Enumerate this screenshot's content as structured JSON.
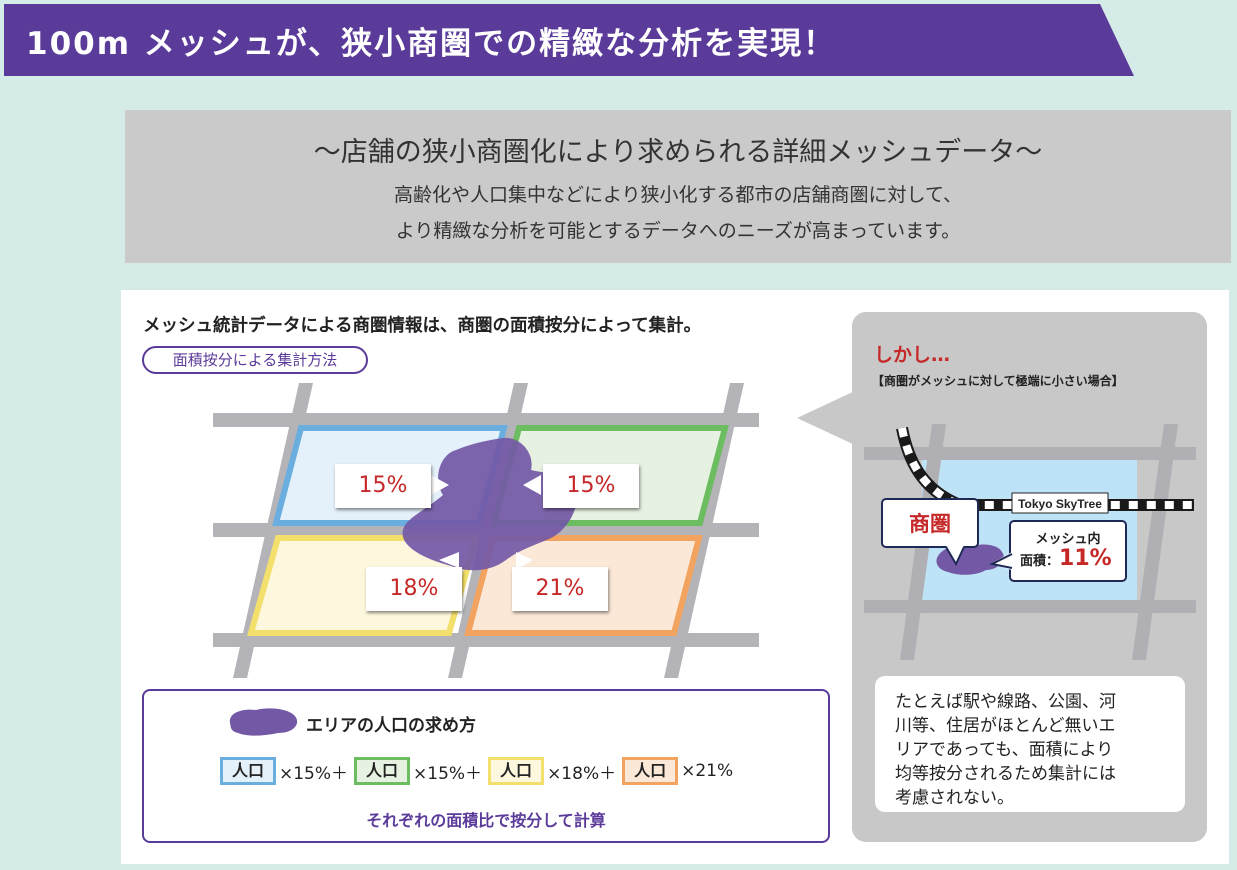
{
  "banner": {
    "title": "100m メッシュが、狭小商圏での精緻な分析を実現！"
  },
  "intro": {
    "title": "～店舗の狭小商圏化により求められる詳細メッシュデータ～",
    "line1": "高齢化や人口集中などにより狭小化する都市の店舗商圏に対して、",
    "line2": "より精緻な分析を可能とするデータへのニーズが高まっています。"
  },
  "left": {
    "heading": "メッシュ統計データによる商圏情報は、商圏の面積按分によって集計。",
    "method_label": "面積按分による集計方法",
    "cells": [
      {
        "percent": "15%",
        "color": "#6aaee0"
      },
      {
        "percent": "15%",
        "color": "#6cbd5f"
      },
      {
        "percent": "18%",
        "color": "#f3df6b"
      },
      {
        "percent": "21%",
        "color": "#f2a35f"
      }
    ],
    "formula": {
      "title": "エリアの人口の求め方",
      "pop_label": "人口",
      "terms": [
        "×15%＋",
        "×15%＋",
        "×18%＋",
        "×21%"
      ],
      "note": "それぞれの面積比で按分して計算"
    }
  },
  "right": {
    "title": "しかし…",
    "subtitle": "【商圏がメッシュに対して極端に小さい場合】",
    "station_label": "Tokyo SkyTree",
    "area_label": "商圏",
    "mesh_label": "メッシュ内",
    "area_ratio_label": "面積：",
    "area_ratio_value": "11%",
    "note_lines": [
      "たとえば駅や線路、公園、河",
      "川等、住居がほとんど無いエ",
      "リアであっても、面積により",
      "均等按分されるため集計には",
      "考慮されない。"
    ]
  },
  "colors": {
    "brand_purple": "#5b3b9a",
    "blob_purple": "#7358a6",
    "accent_red": "#c62828",
    "road_gray": "#b4b4b8"
  }
}
